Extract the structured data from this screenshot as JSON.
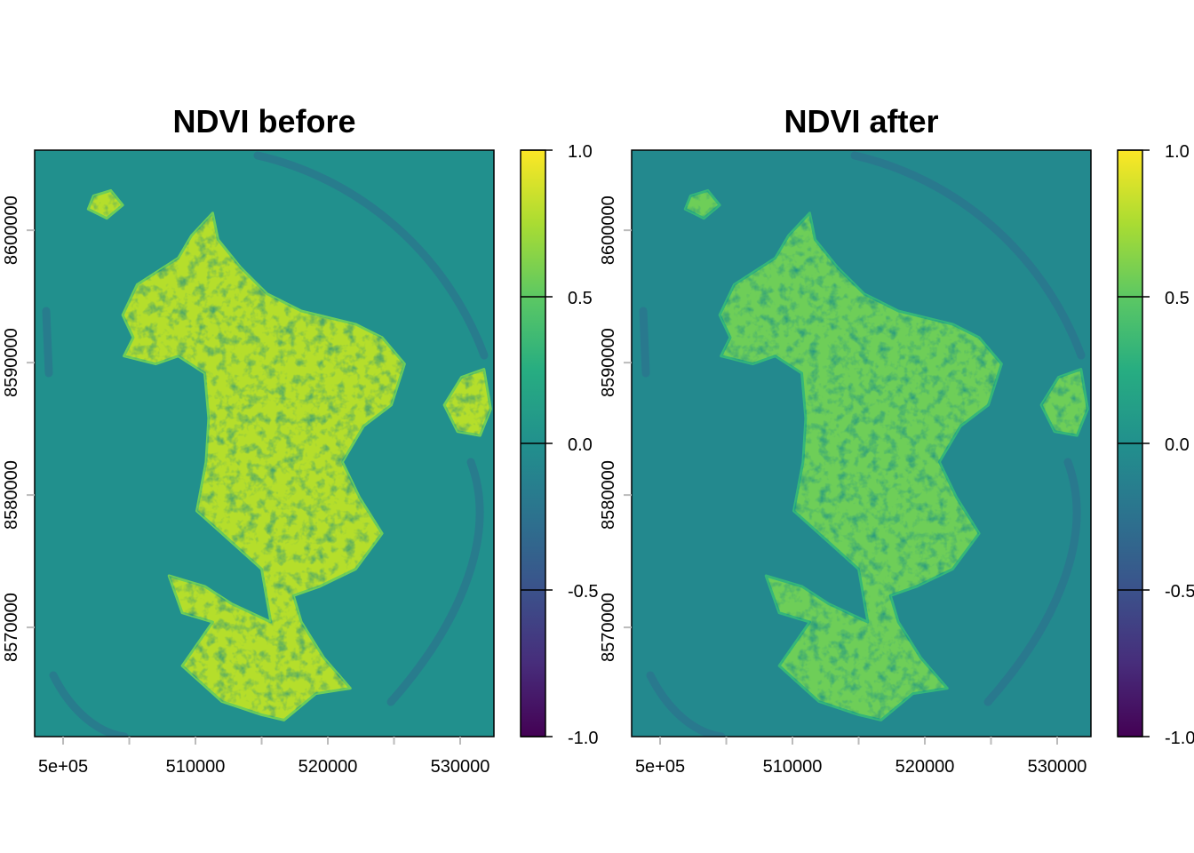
{
  "chart_data": [
    {
      "type": "heatmap",
      "title": "NDVI before",
      "xlim": [
        497850,
        532550
      ],
      "ylim": [
        8561750,
        8606050
      ],
      "xticks": [
        500000,
        505000,
        510000,
        515000,
        520000,
        525000,
        530000
      ],
      "xtick_labels": [
        "5e+05",
        "",
        "510000",
        "",
        "520000",
        "",
        "530000"
      ],
      "yticks": [
        8570000,
        8580000,
        8590000,
        8600000
      ],
      "ytick_labels": [
        "8570000",
        "8580000",
        "8590000",
        "8600000"
      ],
      "colorbar": {
        "range": [
          -1,
          1
        ],
        "ticks": [
          "-1.0",
          "-0.5",
          "0.0",
          "0.5",
          "1.0"
        ],
        "values": [
          -1,
          -0.5,
          0,
          0.5,
          1
        ]
      },
      "background_color": "#21908d",
      "land_color": "#b5de2b",
      "land_color_low": "#6ece58"
    },
    {
      "type": "heatmap",
      "title": "NDVI after",
      "xlim": [
        497850,
        532550
      ],
      "ylim": [
        8561750,
        8606050
      ],
      "xticks": [
        500000,
        505000,
        510000,
        515000,
        520000,
        525000,
        530000
      ],
      "xtick_labels": [
        "5e+05",
        "",
        "510000",
        "",
        "520000",
        "",
        "530000"
      ],
      "yticks": [
        8570000,
        8580000,
        8590000,
        8600000
      ],
      "ytick_labels": [
        "8570000",
        "8580000",
        "8590000",
        "8600000"
      ],
      "colorbar": {
        "range": [
          -1,
          1
        ],
        "ticks": [
          "-1.0",
          "-0.5",
          "0.0",
          "0.5",
          "1.0"
        ],
        "values": [
          -1,
          -0.5,
          0,
          0.5,
          1
        ]
      },
      "background_color": "#23898e",
      "land_color": "#6ece58",
      "land_color_low": "#35b779"
    }
  ],
  "land_outlines_km": {
    "main": [
      [
        511.3,
        8601.3
      ],
      [
        509.7,
        8599.6
      ],
      [
        508.7,
        8597.9
      ],
      [
        505.6,
        8595.9
      ],
      [
        504.5,
        8593.6
      ],
      [
        505.3,
        8591.9
      ],
      [
        504.6,
        8590.5
      ],
      [
        507.0,
        8589.9
      ],
      [
        508.7,
        8590.5
      ],
      [
        510.7,
        8589.2
      ],
      [
        511.0,
        8585.8
      ],
      [
        510.8,
        8582.5
      ],
      [
        510.1,
        8578.8
      ],
      [
        512.0,
        8577.1
      ],
      [
        515.0,
        8574.4
      ],
      [
        515.7,
        8570.4
      ],
      [
        512.7,
        8571.8
      ],
      [
        510.7,
        8573.1
      ],
      [
        508.0,
        8573.9
      ],
      [
        509.0,
        8571.1
      ],
      [
        511.3,
        8570.4
      ],
      [
        509.0,
        8567.1
      ],
      [
        512.0,
        8564.4
      ],
      [
        515.0,
        8563.4
      ],
      [
        516.7,
        8563.0
      ],
      [
        519.1,
        8565.0
      ],
      [
        521.7,
        8565.4
      ],
      [
        519.7,
        8567.7
      ],
      [
        518.0,
        8570.4
      ],
      [
        517.4,
        8572.4
      ],
      [
        519.4,
        8573.1
      ],
      [
        522.1,
        8574.4
      ],
      [
        524.1,
        8577.1
      ],
      [
        522.4,
        8579.8
      ],
      [
        521.1,
        8582.5
      ],
      [
        522.7,
        8585.2
      ],
      [
        524.8,
        8586.8
      ],
      [
        525.8,
        8589.9
      ],
      [
        524.1,
        8591.9
      ],
      [
        522.1,
        8592.9
      ],
      [
        518.0,
        8593.9
      ],
      [
        515.4,
        8595.2
      ],
      [
        513.4,
        8597.2
      ],
      [
        511.7,
        8599.3
      ]
    ],
    "petite_terre": [
      [
        528.8,
        8586.8
      ],
      [
        530.1,
        8588.9
      ],
      [
        531.8,
        8589.5
      ],
      [
        532.3,
        8586.5
      ],
      [
        531.5,
        8584.5
      ],
      [
        529.8,
        8584.8
      ]
    ],
    "nw_islet": [
      [
        502.3,
        8602.6
      ],
      [
        503.6,
        8603.0
      ],
      [
        504.5,
        8601.9
      ],
      [
        503.3,
        8600.9
      ],
      [
        501.9,
        8601.6
      ]
    ]
  }
}
